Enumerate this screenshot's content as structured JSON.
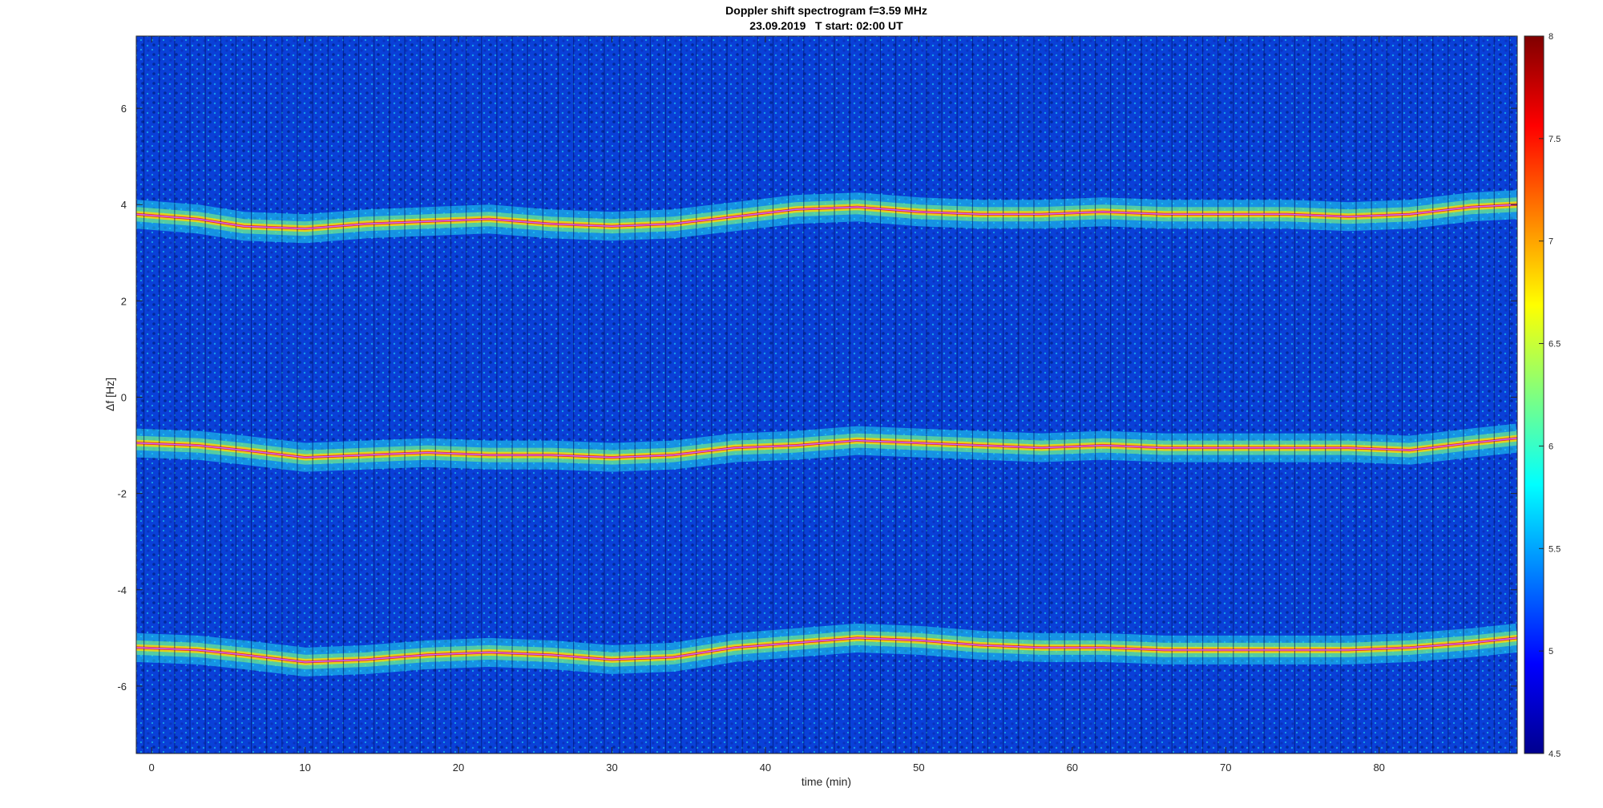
{
  "title_line1": "Doppler shift spectrogram f=3.59 MHz",
  "title_line2": "23.09.2019   T start: 02:00 UT",
  "chart_data": {
    "type": "heatmap",
    "title": "Doppler shift spectrogram f=3.59 MHz",
    "subtitle": "23.09.2019   T start: 02:00 UT",
    "xlabel": "time (min)",
    "ylabel": "Δf [Hz]",
    "xlim": [
      -1,
      89
    ],
    "ylim": [
      -7.4,
      7.5
    ],
    "xticks": [
      0,
      10,
      20,
      30,
      40,
      50,
      60,
      70,
      80
    ],
    "yticks": [
      -6,
      -4,
      -2,
      0,
      2,
      4,
      6
    ],
    "colorbar": {
      "range": [
        4.5,
        8
      ],
      "ticks": [
        4.5,
        5,
        5.5,
        6,
        6.5,
        7,
        7.5,
        8
      ],
      "colormap": "jet"
    },
    "grid": false,
    "traces": [
      {
        "x": [
          -1,
          3,
          6,
          10,
          14,
          18,
          22,
          26,
          30,
          34,
          38,
          42,
          46,
          50,
          54,
          58,
          62,
          66,
          70,
          74,
          78,
          82,
          86,
          89
        ],
        "y": [
          3.8,
          3.7,
          3.55,
          3.5,
          3.6,
          3.65,
          3.7,
          3.6,
          3.55,
          3.6,
          3.75,
          3.9,
          3.95,
          3.85,
          3.8,
          3.8,
          3.85,
          3.8,
          3.8,
          3.8,
          3.75,
          3.8,
          3.95,
          4.0
        ]
      },
      {
        "x": [
          -1,
          3,
          6,
          10,
          14,
          18,
          22,
          26,
          30,
          34,
          38,
          42,
          46,
          50,
          54,
          58,
          62,
          66,
          70,
          74,
          78,
          82,
          86,
          89
        ],
        "y": [
          -0.95,
          -1.0,
          -1.1,
          -1.25,
          -1.2,
          -1.15,
          -1.2,
          -1.2,
          -1.25,
          -1.2,
          -1.05,
          -1.0,
          -0.9,
          -0.95,
          -1.0,
          -1.05,
          -1.0,
          -1.05,
          -1.05,
          -1.05,
          -1.05,
          -1.1,
          -0.95,
          -0.85
        ]
      },
      {
        "x": [
          -1,
          3,
          6,
          10,
          14,
          18,
          22,
          26,
          30,
          34,
          38,
          42,
          46,
          50,
          54,
          58,
          62,
          66,
          70,
          74,
          78,
          82,
          86,
          89
        ],
        "y": [
          -5.2,
          -5.25,
          -5.35,
          -5.5,
          -5.45,
          -5.35,
          -5.3,
          -5.35,
          -5.45,
          -5.4,
          -5.2,
          -5.1,
          -5.0,
          -5.05,
          -5.15,
          -5.2,
          -5.2,
          -5.25,
          -5.25,
          -5.25,
          -5.25,
          -5.2,
          -5.1,
          -5.0
        ]
      }
    ]
  }
}
